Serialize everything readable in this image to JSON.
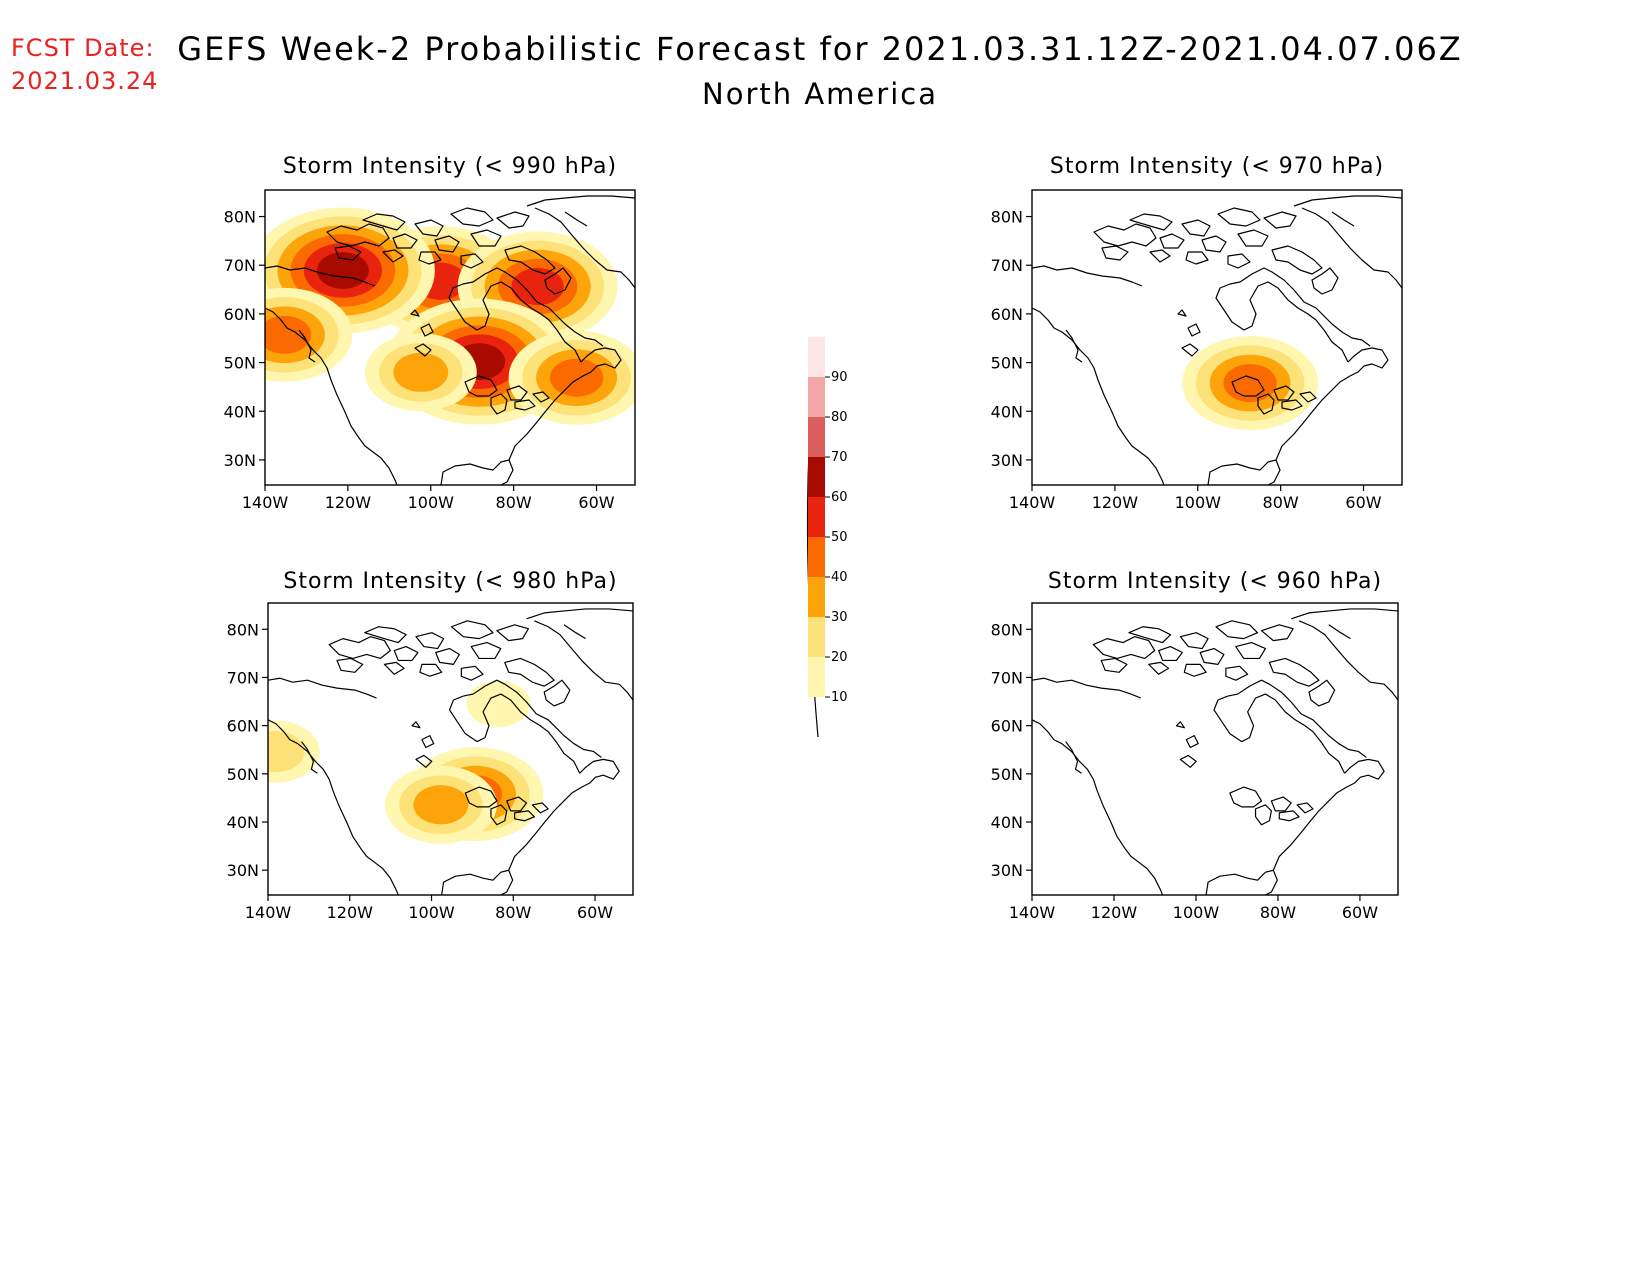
{
  "header": {
    "fcst_label": "FCST Date:",
    "fcst_date": "2021.03.24",
    "title": "GEFS Week-2 Probabilistic Forecast for 2021.03.31.12Z-2021.04.07.06Z",
    "subtitle": "North America"
  },
  "axes": {
    "lat_ticks": [
      "80N",
      "70N",
      "60N",
      "50N",
      "40N",
      "30N"
    ],
    "lon_ticks": [
      "140W",
      "120W",
      "100W",
      "80W",
      "60W"
    ]
  },
  "colorbar": {
    "levels": [
      "10",
      "20",
      "30",
      "40",
      "50",
      "60",
      "70",
      "80",
      "90"
    ],
    "colors": [
      "#fff6b0",
      "#fde27a",
      "#fca40a",
      "#fb6a00",
      "#e8230e",
      "#a80a00",
      "#db5e5e",
      "#f4a7a7",
      "#fde6ea"
    ]
  },
  "panels": [
    {
      "id": "p990",
      "title": "Storm Intensity (< 990 hPa)",
      "probability_blobs": [
        {
          "lon": -95,
          "lat": 65,
          "level": 50
        },
        {
          "lon": -70,
          "lat": 64,
          "level": 50
        },
        {
          "lon": -120,
          "lat": 67,
          "level": 60
        },
        {
          "lon": -85,
          "lat": 50,
          "level": 60
        },
        {
          "lon": -135,
          "lat": 55,
          "level": 40
        },
        {
          "lon": -100,
          "lat": 48,
          "level": 30
        },
        {
          "lon": -60,
          "lat": 47,
          "level": 40
        }
      ]
    },
    {
      "id": "p970",
      "title": "Storm Intensity (< 970 hPa)",
      "probability_blobs": [
        {
          "lon": -84,
          "lat": 46,
          "level": 40
        }
      ]
    },
    {
      "id": "p980",
      "title": "Storm Intensity (< 980 hPa)",
      "probability_blobs": [
        {
          "lon": -80,
          "lat": 63,
          "level": 10
        },
        {
          "lon": -86,
          "lat": 46,
          "level": 40
        },
        {
          "lon": -95,
          "lat": 44,
          "level": 30
        },
        {
          "lon": -138,
          "lat": 54,
          "level": 20
        }
      ]
    },
    {
      "id": "p960",
      "title": "Storm Intensity (< 960 hPa)",
      "probability_blobs": []
    }
  ]
}
